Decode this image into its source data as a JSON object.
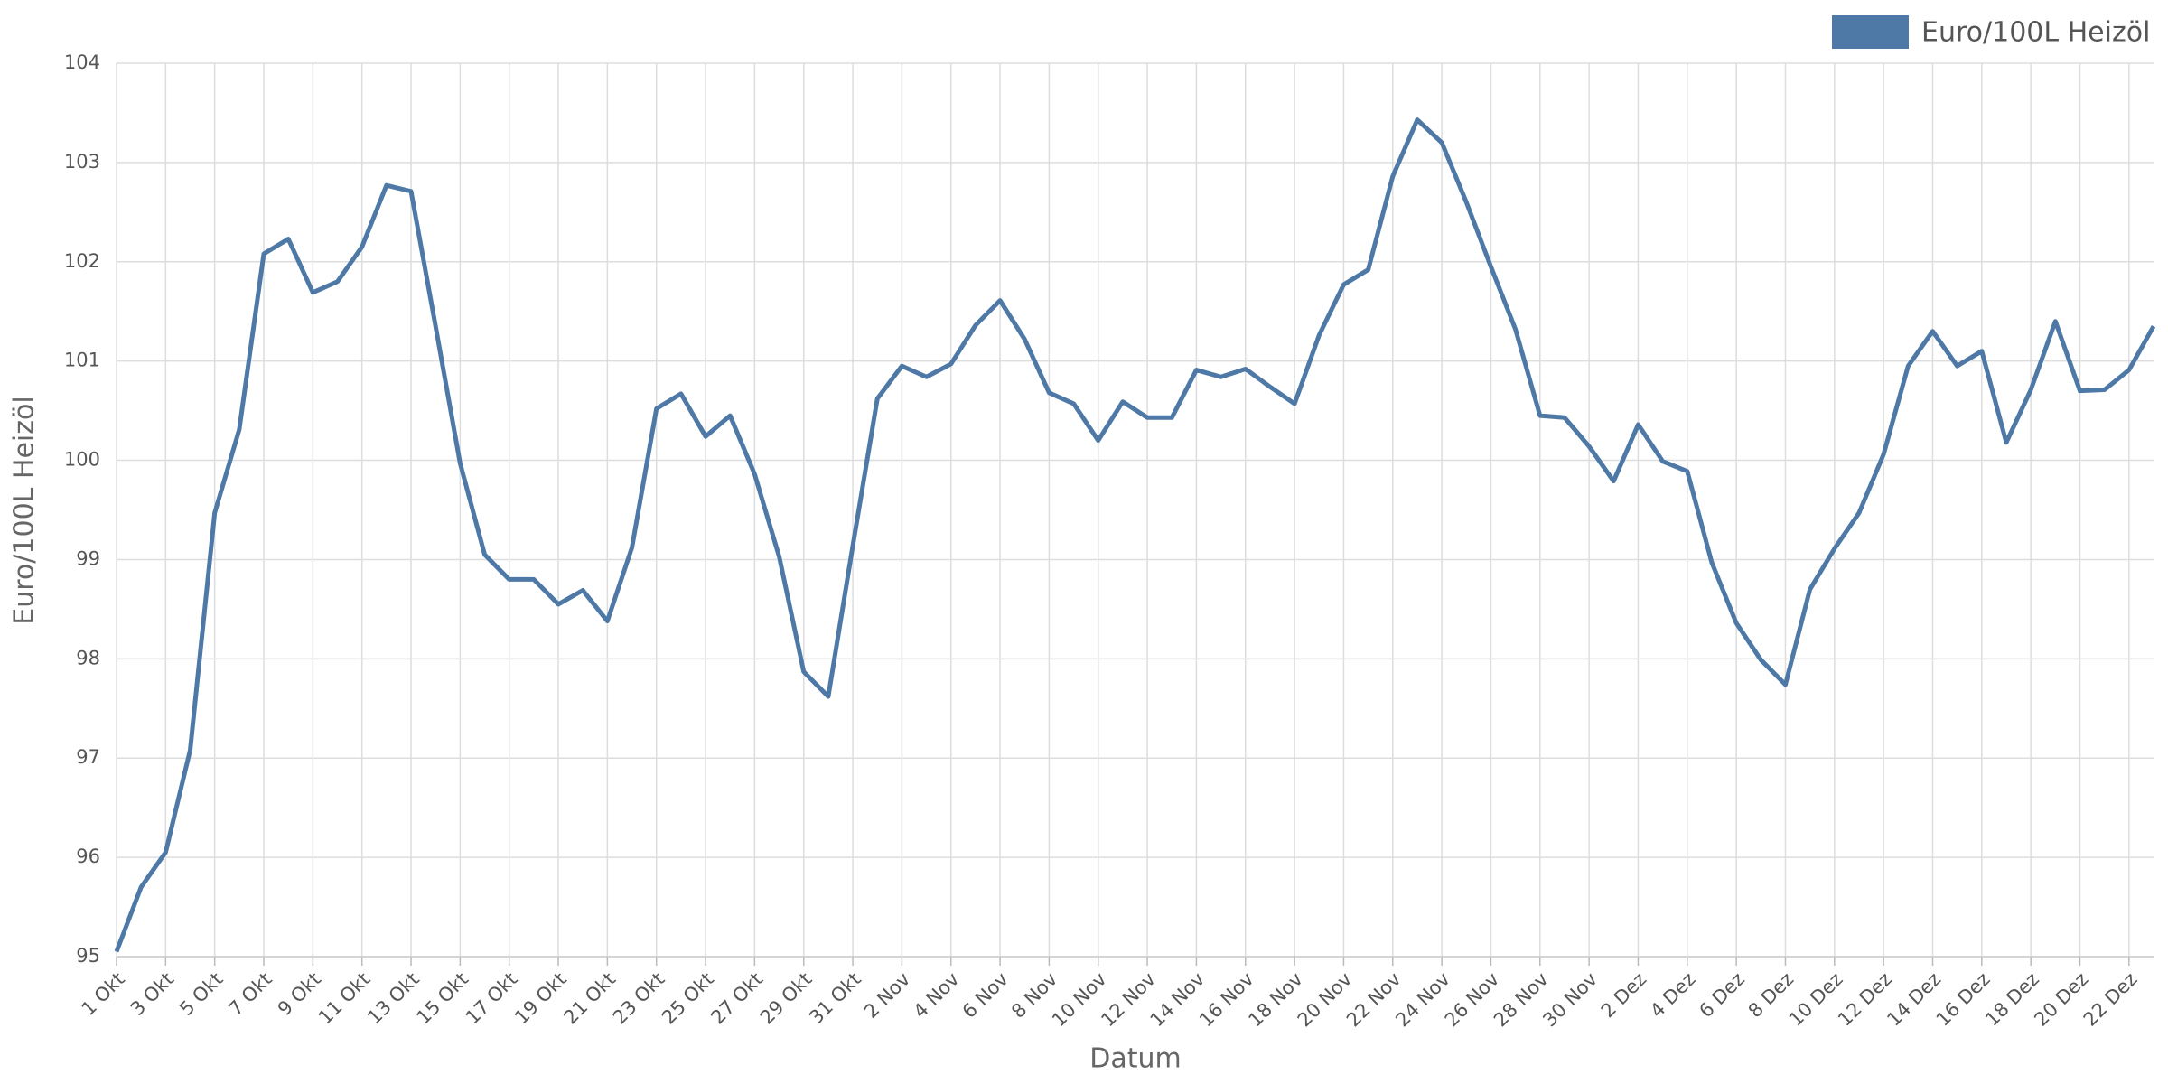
{
  "chart_data": {
    "type": "line",
    "x_label": "Datum",
    "y_label": "Euro/100L Heizöl",
    "categories": [
      "1 Okt",
      null,
      "3 Okt",
      null,
      "5 Okt",
      null,
      "7 Okt",
      null,
      "9 Okt",
      null,
      "11 Okt",
      null,
      "13 Okt",
      null,
      "15 Okt",
      null,
      "17 Okt",
      null,
      "19 Okt",
      null,
      "21 Okt",
      null,
      "23 Okt",
      null,
      "25 Okt",
      null,
      "27 Okt",
      null,
      "29 Okt",
      null,
      "31 Okt",
      null,
      "2 Nov",
      null,
      "4 Nov",
      null,
      "6 Nov",
      null,
      "8 Nov",
      null,
      "10 Nov",
      null,
      "12 Nov",
      null,
      "14 Nov",
      null,
      "16 Nov",
      null,
      "18 Nov",
      null,
      "20 Nov",
      null,
      "22 Nov",
      null,
      "24 Nov",
      null,
      "26 Nov",
      null,
      "28 Nov",
      null,
      "30 Nov",
      null,
      "2 Dez",
      null,
      "4 Dez",
      null,
      "6 Dez",
      null,
      "8 Dez",
      null,
      "10 Dez",
      null,
      "12 Dez",
      null,
      "14 Dez",
      null,
      "16 Dez",
      null,
      "18 Dez",
      null,
      "20 Dez",
      null,
      "22 Dez",
      null
    ],
    "series": [
      {
        "name": "Euro/100L Heizöl",
        "color": "#4e79a7",
        "values": [
          95.05,
          95.7,
          96.05,
          97.08,
          99.47,
          100.31,
          102.08,
          102.23,
          101.69,
          101.8,
          102.15,
          102.77,
          102.71,
          101.35,
          99.97,
          99.05,
          98.8,
          98.8,
          98.55,
          98.69,
          98.38,
          99.12,
          100.52,
          100.67,
          100.24,
          100.45,
          99.86,
          99.03,
          97.87,
          97.62,
          99.14,
          100.62,
          100.95,
          100.84,
          100.97,
          101.36,
          101.61,
          101.22,
          100.68,
          100.57,
          100.2,
          100.59,
          100.43,
          100.43,
          100.91,
          100.84,
          100.92,
          100.74,
          100.57,
          101.26,
          101.77,
          101.92,
          102.86,
          103.43,
          103.2,
          102.6,
          101.95,
          101.32,
          100.45,
          100.43,
          100.14,
          99.79,
          100.36,
          99.99,
          99.89,
          98.97,
          98.36,
          97.99,
          97.74,
          98.7,
          99.11,
          99.47,
          100.06,
          100.95,
          101.3,
          100.95,
          101.1,
          100.18,
          100.71,
          101.4,
          100.7,
          100.71,
          100.91,
          101.35
        ]
      }
    ],
    "ylim": [
      95,
      104
    ],
    "yticks": [
      95,
      96,
      97,
      98,
      99,
      100,
      101,
      102,
      103,
      104
    ],
    "grid": true,
    "legend": "top-right"
  }
}
